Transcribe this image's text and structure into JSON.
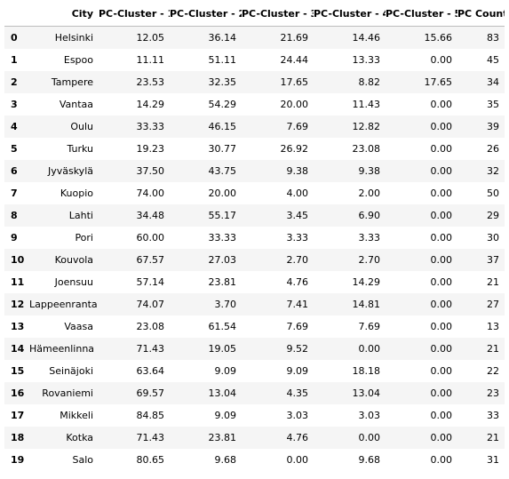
{
  "table": {
    "columns": [
      "",
      "City",
      "PC-Cluster - 1",
      "PC-Cluster - 2",
      "PC-Cluster - 3",
      "PC-Cluster - 4",
      "PC-Cluster - 5",
      "PC Count"
    ],
    "rows": [
      [
        "0",
        "Helsinki",
        "12.05",
        "36.14",
        "21.69",
        "14.46",
        "15.66",
        "83"
      ],
      [
        "1",
        "Espoo",
        "11.11",
        "51.11",
        "24.44",
        "13.33",
        "0.00",
        "45"
      ],
      [
        "2",
        "Tampere",
        "23.53",
        "32.35",
        "17.65",
        "8.82",
        "17.65",
        "34"
      ],
      [
        "3",
        "Vantaa",
        "14.29",
        "54.29",
        "20.00",
        "11.43",
        "0.00",
        "35"
      ],
      [
        "4",
        "Oulu",
        "33.33",
        "46.15",
        "7.69",
        "12.82",
        "0.00",
        "39"
      ],
      [
        "5",
        "Turku",
        "19.23",
        "30.77",
        "26.92",
        "23.08",
        "0.00",
        "26"
      ],
      [
        "6",
        "Jyväskylä",
        "37.50",
        "43.75",
        "9.38",
        "9.38",
        "0.00",
        "32"
      ],
      [
        "7",
        "Kuopio",
        "74.00",
        "20.00",
        "4.00",
        "2.00",
        "0.00",
        "50"
      ],
      [
        "8",
        "Lahti",
        "34.48",
        "55.17",
        "3.45",
        "6.90",
        "0.00",
        "29"
      ],
      [
        "9",
        "Pori",
        "60.00",
        "33.33",
        "3.33",
        "3.33",
        "0.00",
        "30"
      ],
      [
        "10",
        "Kouvola",
        "67.57",
        "27.03",
        "2.70",
        "2.70",
        "0.00",
        "37"
      ],
      [
        "11",
        "Joensuu",
        "57.14",
        "23.81",
        "4.76",
        "14.29",
        "0.00",
        "21"
      ],
      [
        "12",
        "Lappeenranta",
        "74.07",
        "3.70",
        "7.41",
        "14.81",
        "0.00",
        "27"
      ],
      [
        "13",
        "Vaasa",
        "23.08",
        "61.54",
        "7.69",
        "7.69",
        "0.00",
        "13"
      ],
      [
        "14",
        "Hämeenlinna",
        "71.43",
        "19.05",
        "9.52",
        "0.00",
        "0.00",
        "21"
      ],
      [
        "15",
        "Seinäjoki",
        "63.64",
        "9.09",
        "9.09",
        "18.18",
        "0.00",
        "22"
      ],
      [
        "16",
        "Rovaniemi",
        "69.57",
        "13.04",
        "4.35",
        "13.04",
        "0.00",
        "23"
      ],
      [
        "17",
        "Mikkeli",
        "84.85",
        "9.09",
        "3.03",
        "3.03",
        "0.00",
        "33"
      ],
      [
        "18",
        "Kotka",
        "71.43",
        "23.81",
        "4.76",
        "0.00",
        "0.00",
        "21"
      ],
      [
        "19",
        "Salo",
        "80.65",
        "9.68",
        "0.00",
        "9.68",
        "0.00",
        "31"
      ]
    ]
  },
  "colors": {
    "stripe": "#f5f5f5",
    "header_rule": "#bdbdbd",
    "text": "#000000"
  }
}
